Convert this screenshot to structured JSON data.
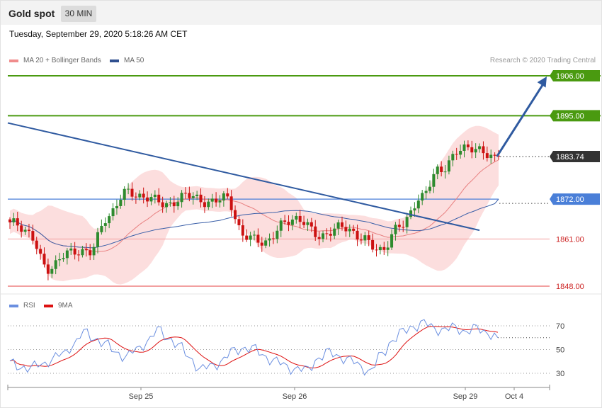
{
  "header": {
    "title": "Gold spot",
    "timeframe": "30 MIN"
  },
  "timestamp": "Tuesday, September 29, 2020 5:18:26 AM CET",
  "legend": {
    "ma20": "MA 20 + Bollinger Bands",
    "ma50": "MA 50"
  },
  "copyright": "Research © 2020 Trading Central",
  "rsi_legend": {
    "rsi": "RSI",
    "ma9": "9MA"
  },
  "colors": {
    "up": "#2e8b2e",
    "down": "#cc1111",
    "band": "#fbd3d3",
    "ma20": "#e88080",
    "ma50": "#3a5fa8",
    "resistance": "#4a9a10",
    "pivot": "#4a7fd8",
    "support": "#cc2222",
    "last": "#333333",
    "arrow": "#2f5aa0"
  },
  "chart_data": [
    {
      "type": "candlestick",
      "title": "Gold spot",
      "timeframe": "30 MIN",
      "xlabel": "",
      "ylabel": "",
      "x_ticks": [
        "Sep 25",
        "Sep 26",
        "Sep 29",
        "Oct 4"
      ],
      "ylim": [
        1845,
        1910
      ],
      "levels": [
        {
          "label": "1906.00",
          "value": 1906.0,
          "kind": "resistance"
        },
        {
          "label": "1895.00",
          "value": 1895.0,
          "kind": "resistance"
        },
        {
          "label": "1883.74",
          "value": 1883.74,
          "kind": "last"
        },
        {
          "label": "1872.00",
          "value": 1872.0,
          "kind": "pivot"
        },
        {
          "label": "1861.00",
          "value": 1861.0,
          "kind": "support"
        },
        {
          "label": "1848.00",
          "value": 1848.0,
          "kind": "support"
        }
      ],
      "anchors": [
        1865.6,
        1862,
        1853,
        1856.8,
        1858,
        1866.3,
        1874.6,
        1872.3,
        1870.1,
        1873.8,
        1870.2,
        1873.4,
        1861.2,
        1860.3,
        1865.3,
        1865.8,
        1861.9,
        1864,
        1862,
        1857,
        1865.5,
        1872,
        1880,
        1886,
        1885,
        1883.7
      ],
      "trendline": [
        {
          "i": 0,
          "price": 1893
        },
        {
          "i": 123,
          "price": 1863.4
        }
      ],
      "forecast_arrow": [
        {
          "i": 127,
          "price": 1883.74
        },
        {
          "i": 137,
          "price": 1906
        }
      ],
      "ma50_end": {
        "i": 128,
        "price": 1872
      }
    },
    {
      "type": "line",
      "title": "RSI",
      "series": [
        {
          "name": "RSI"
        },
        {
          "name": "9MA"
        }
      ],
      "ylim": [
        20,
        80
      ],
      "yticks": [
        30,
        50,
        70
      ],
      "anchors": [
        38,
        36,
        34,
        38,
        42,
        46,
        55,
        64,
        60,
        54,
        48,
        44,
        50,
        58,
        66,
        60,
        52,
        43,
        33,
        36,
        41,
        48,
        52,
        50,
        45,
        40,
        36,
        34,
        32,
        43,
        47,
        45,
        41,
        36,
        32,
        45,
        58,
        64,
        70,
        72,
        68,
        67,
        68,
        66,
        67,
        65,
        60
      ]
    }
  ]
}
